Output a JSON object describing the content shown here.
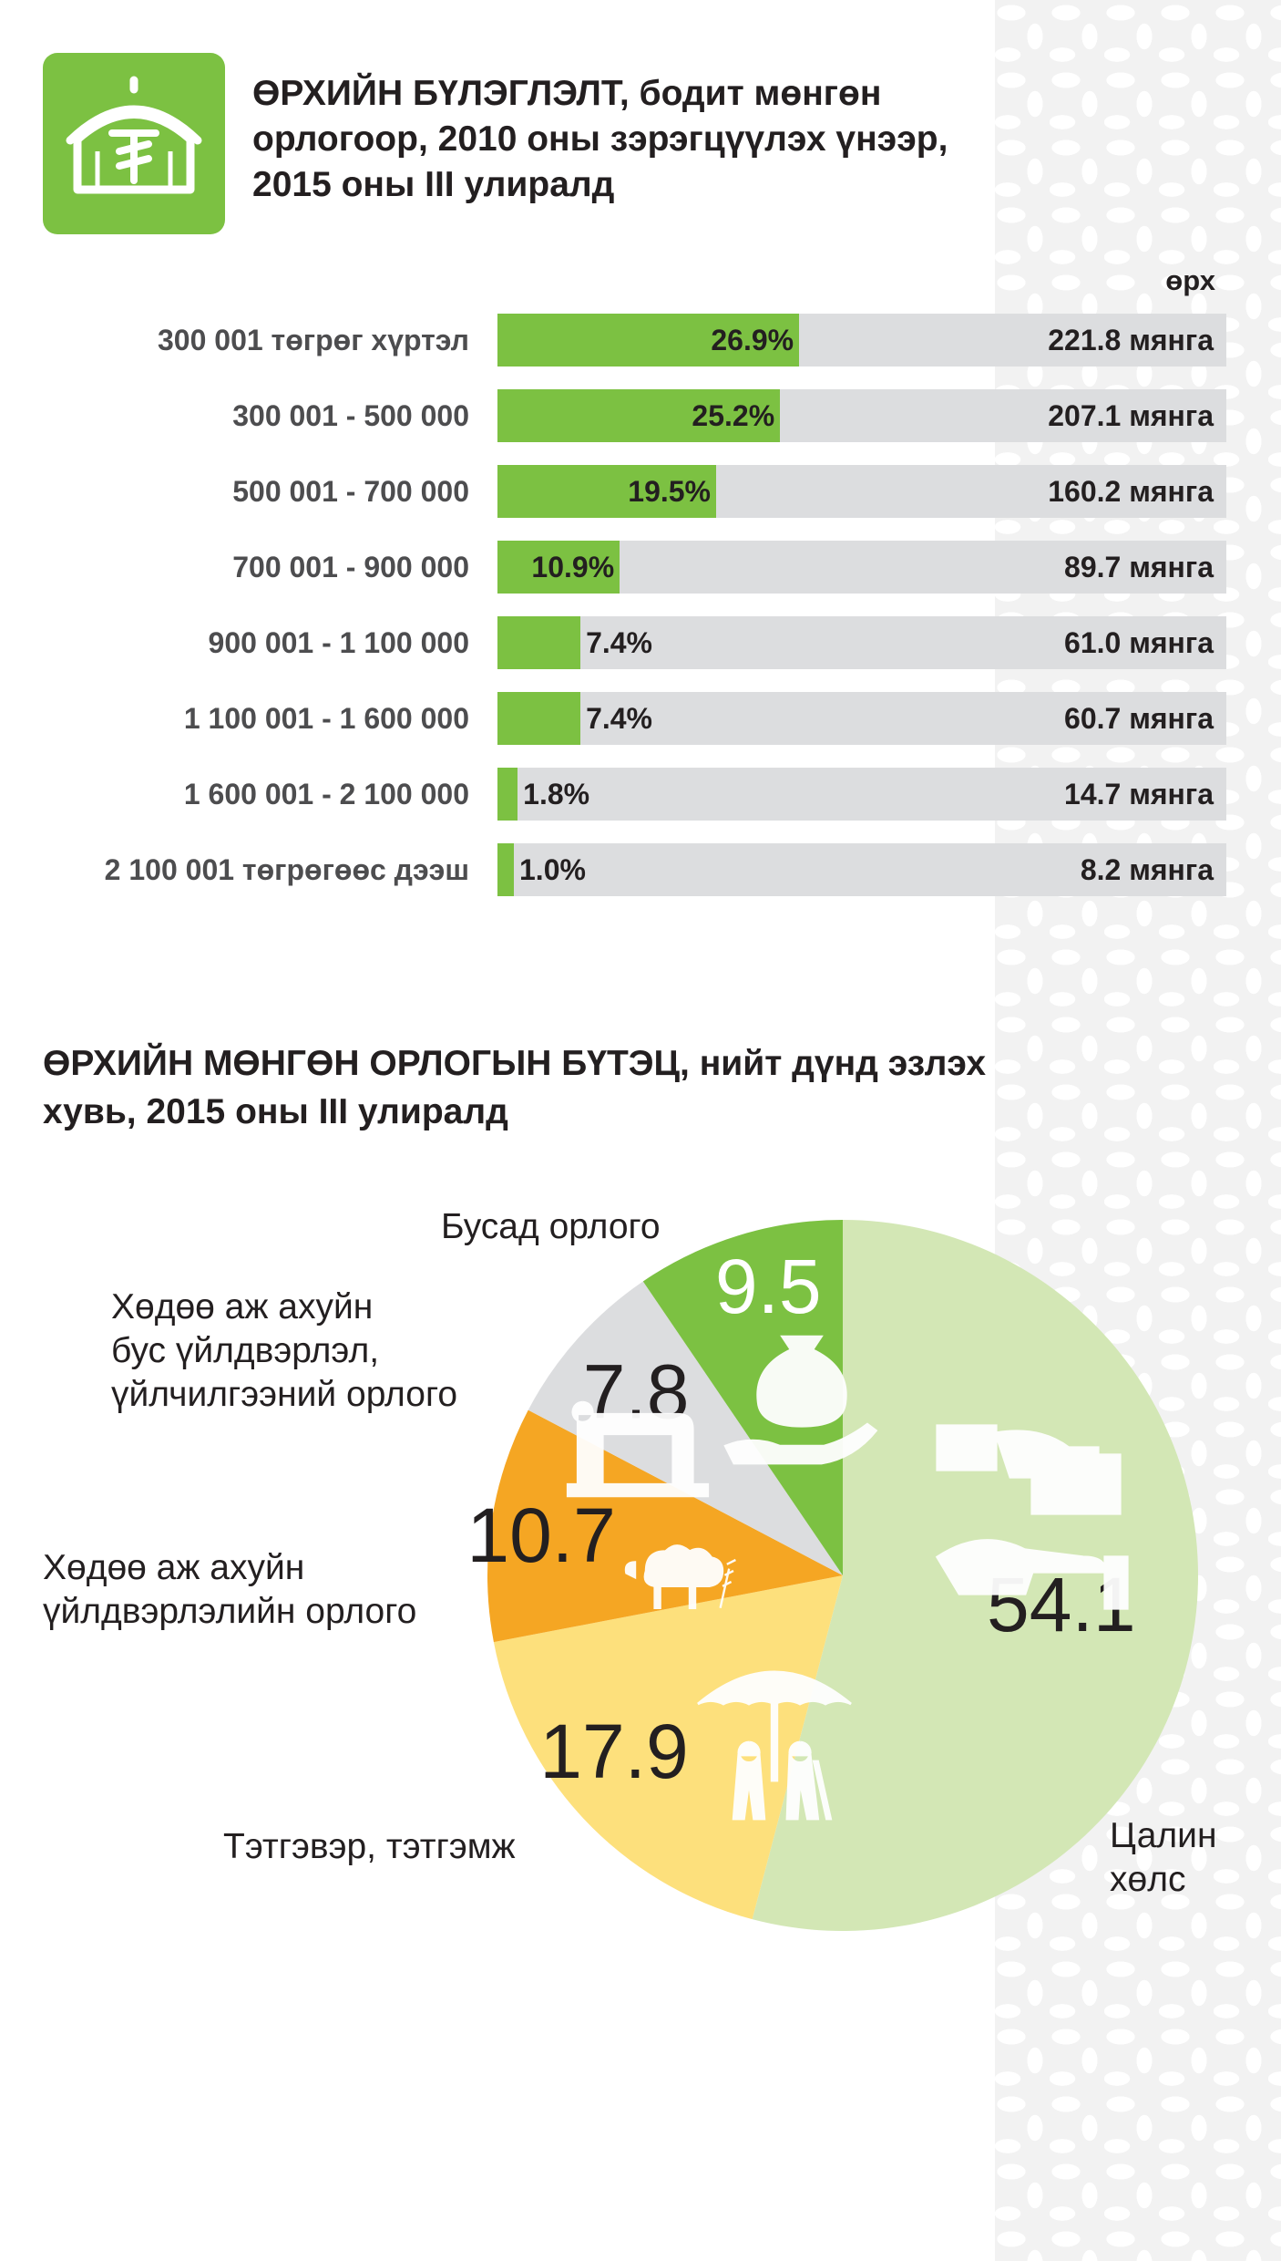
{
  "header": {
    "title": "ӨРХИЙН БҮЛЭГЛЭЛТ, бодит мөнгөн орлогоор, 2010 оны зэрэгцүүлэх үнээр, 2015 оны III улиралд",
    "logo_icon": "ger-tugrik-icon",
    "logo_color": "#7cc142"
  },
  "chart_data": [
    {
      "type": "bar",
      "orientation": "horizontal",
      "title": "ӨРХИЙН БҮЛЭГЛЭЛТ, бодит мөнгөн орлогоор, 2010 оны зэрэгцүүлэх үнээр, 2015 оны III улиралд",
      "unit_label": "өрх",
      "categories": [
        "300 001 төгрөг хүртэл",
        "300 001 - 500 000",
        "500 001 - 700 000",
        "700 001 - 900 000",
        "900 001 - 1 100 000",
        "1 100 001 - 1 600 000",
        "1 600 001 - 2 100 000",
        "2 100 001 төгрөгөөс дээш"
      ],
      "values": [
        26.9,
        25.2,
        19.5,
        10.9,
        7.4,
        7.4,
        1.8,
        1.0
      ],
      "value_labels": [
        "26.9%",
        "25.2%",
        "19.5%",
        "10.9%",
        "7.4%",
        "7.4%",
        "1.8%",
        "1.0%"
      ],
      "households": [
        "221.8 мянга",
        "207.1 мянга",
        "160.2 мянга",
        "89.7 мянга",
        "61.0 мянга",
        "60.7 мянга",
        "14.7 мянга",
        "8.2 мянга"
      ],
      "xlim": [
        0,
        65
      ],
      "bar_color": "#7cc142",
      "track_color": "#dcdddf"
    },
    {
      "type": "pie",
      "title": "ӨРХИЙН МӨНГӨН ОРЛОГЫН БҮТЭЦ, нийт дүнд эзлэх хувь, 2015 оны III улиралд",
      "slices": [
        {
          "label": "Цалин хөлс",
          "value": 54.1,
          "display": "54.1",
          "color": "#d3e7b5",
          "icon": "hand-money-icon"
        },
        {
          "label": "Тэтгэвэр, тэтгэмж",
          "value": 17.9,
          "display": "17.9",
          "color": "#fde07c",
          "icon": "elderly-umbrella-icon"
        },
        {
          "label": "Хөдөө аж ахуйн үйлдвэрлэлийн орлого",
          "value": 10.7,
          "display": "10.7",
          "color": "#f5a623",
          "icon": "sheep-wheat-icon"
        },
        {
          "label": "Хөдөө аж ахуйн бус үйлдвэрлэл, үйлчилгээний орлого",
          "value": 7.8,
          "display": "7.8",
          "color": "#dcdddf",
          "icon": "sewing-machine-icon"
        },
        {
          "label": "Бусад орлого",
          "value": 9.5,
          "display": "9.5",
          "color": "#7cc142",
          "icon": "money-bag-hand-icon"
        }
      ],
      "label_lines": {
        "wages": [
          "Цалин",
          "хөлс"
        ],
        "pension": [
          "Тэтгэвэр, тэтгэмж"
        ],
        "agri": [
          "Хөдөө аж ахуйн",
          "үйлдвэрлэлийн орлого"
        ],
        "nonagri": [
          "Хөдөө аж ахуйн",
          "бус үйлдвэрлэл,",
          "үйлчилгээний орлого"
        ],
        "other": [
          "Бусад орлого"
        ]
      }
    }
  ],
  "background": {
    "pattern_color": "#f2f2f2"
  }
}
